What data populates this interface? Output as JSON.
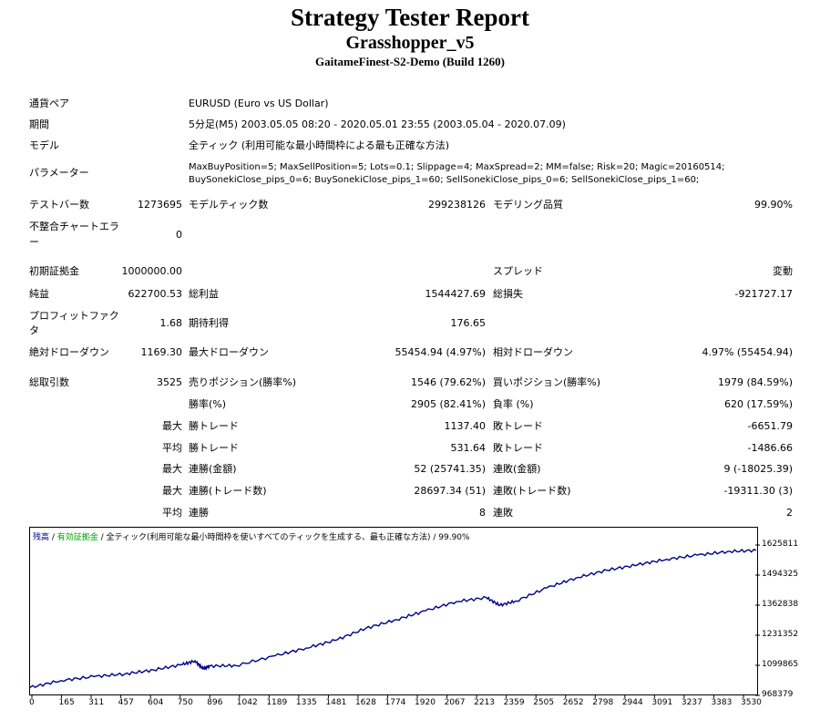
{
  "header": {
    "title": "Strategy Tester Report",
    "expert": "Grasshopper_v5",
    "server": "GaitameFinest-S2-Demo (Build 1260)"
  },
  "info": {
    "symbol_label": "通貨ペア",
    "symbol_value": "EURUSD (Euro vs US Dollar)",
    "period_label": "期間",
    "period_value": "5分足(M5) 2003.05.05 08:20 - 2020.05.01 23:55 (2003.05.04 - 2020.07.09)",
    "model_label": "モデル",
    "model_value": "全ティック (利用可能な最小時間枠による最も正確な方法)",
    "params_label": "パラメーター",
    "params_line1": "MaxBuyPosition=5; MaxSellPosition=5; Lots=0.1; Slippage=4; MaxSpread=2; MM=false; Risk=20; Magic=20160514;",
    "params_line2": "BuySonekiClose_pips_0=6; BuySonekiClose_pips_1=60; SellSonekiClose_pips_0=6; SellSonekiClose_pips_1=60;"
  },
  "stats": {
    "bars_label": "テストバー数",
    "bars_value": "1273695",
    "ticks_label": "モデルティック数",
    "ticks_value": "299238126",
    "quality_label": "モデリング品質",
    "quality_value": "99.90%",
    "mismatch_label_1": "不整合チャートエラ",
    "mismatch_label_2": "ー",
    "mismatch_value": "0",
    "deposit_label": "初期証拠金",
    "deposit_value": "1000000.00",
    "spread_label": "スプレッド",
    "spread_value": "変動",
    "net_label": "純益",
    "net_value": "622700.53",
    "gross_profit_label": "総利益",
    "gross_profit_value": "1544427.69",
    "gross_loss_label": "総損失",
    "gross_loss_value": "-921727.17",
    "pf_label_1": "プロフィットファク",
    "pf_label_2": "タ",
    "pf_value": "1.68",
    "payoff_label": "期待利得",
    "payoff_value": "176.65",
    "abs_dd_label": "絶対ドローダウン",
    "abs_dd_value": "1169.30",
    "max_dd_label": "最大ドローダウン",
    "max_dd_value": "55454.94 (4.97%)",
    "rel_dd_label": "相対ドローダウン",
    "rel_dd_value": "4.97% (55454.94)",
    "trades_label": "総取引数",
    "trades_value": "3525",
    "short_label": "売りポジション(勝率%)",
    "short_value": "1546 (79.62%)",
    "long_label": "買いポジション(勝率%)",
    "long_value": "1979 (84.59%)",
    "win_label": "勝率(%)",
    "win_value": "2905 (82.41%)",
    "loss_label": "負率 (%)",
    "loss_value": "620 (17.59%)",
    "max": "最大",
    "avg": "平均",
    "largest_win_label": "勝トレード",
    "largest_win_value": "1137.40",
    "largest_loss_label": "敗トレード",
    "largest_loss_value": "-6651.79",
    "avg_win_label": "勝トレード",
    "avg_win_value": "531.64",
    "avg_loss_label": "敗トレード",
    "avg_loss_value": "-1486.66",
    "cons_wins_money_label": "連勝(金額)",
    "cons_wins_money_value": "52 (25741.35)",
    "cons_losses_money_label": "連敗(金額)",
    "cons_losses_money_value": "9 (-18025.39)",
    "cons_wins_trades_label": "連勝(トレード数)",
    "cons_wins_trades_value": "28697.34 (51)",
    "cons_losses_trades_label": "連敗(トレード数)",
    "cons_losses_trades_value": "-19311.30 (3)",
    "avg_cons_wins_label": "連勝",
    "avg_cons_wins_value": "8",
    "avg_cons_losses_label": "連敗",
    "avg_cons_losses_value": "2"
  },
  "chart_data": {
    "type": "line",
    "legend_balance": "残高",
    "legend_equity": "有効証拠金",
    "legend_rest": " / 全ティック(利用可能な最小時間枠を使いすべてのティックを生成する、最も正確な方法) / 99.90%",
    "x_ticks": [
      "0",
      "165",
      "311",
      "457",
      "604",
      "750",
      "896",
      "1042",
      "1189",
      "1335",
      "1481",
      "1628",
      "1774",
      "1920",
      "2067",
      "2213",
      "2359",
      "2505",
      "2652",
      "2798",
      "2944",
      "3091",
      "3237",
      "3383",
      "3530"
    ],
    "y_ticks": [
      "1625811",
      "1494325",
      "1362838",
      "1231352",
      "1099865",
      "968379"
    ],
    "xlim": [
      0,
      3525
    ],
    "ylim": [
      968379,
      1650000
    ],
    "series": [
      {
        "color": "#00008b",
        "x": [
          0,
          150,
          310,
          460,
          600,
          740,
          800,
          840,
          870,
          1000,
          1190,
          1340,
          1480,
          1630,
          1780,
          1920,
          2070,
          2215,
          2280,
          2360,
          2510,
          2650,
          2800,
          2950,
          3090,
          3240,
          3385,
          3525
        ],
        "y": [
          1000000,
          1032000,
          1050000,
          1062000,
          1080000,
          1105000,
          1122000,
          1085000,
          1098000,
          1100000,
          1145000,
          1180000,
          1215000,
          1270000,
          1310000,
          1350000,
          1392000,
          1410000,
          1375000,
          1395000,
          1455000,
          1500000,
          1535000,
          1560000,
          1585000,
          1604000,
          1620000,
          1625811
        ]
      }
    ]
  }
}
